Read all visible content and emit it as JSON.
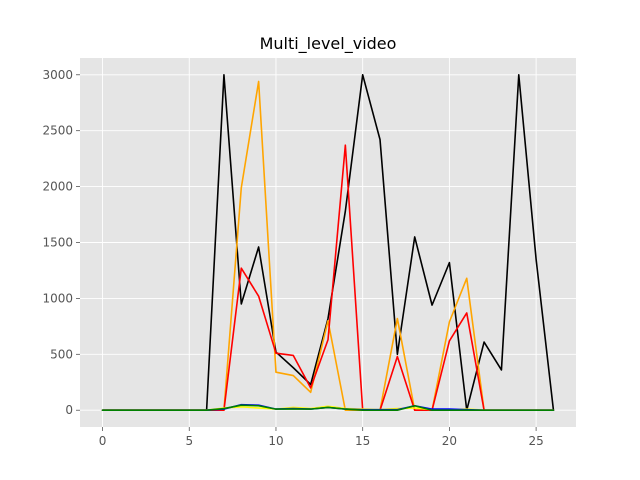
{
  "chart_data": {
    "type": "line",
    "title": "Multi_level_video",
    "xlabel": "",
    "ylabel": "",
    "xlim": [
      -1.3,
      27.3
    ],
    "ylim": [
      -150,
      3150
    ],
    "xticks": [
      0,
      5,
      10,
      15,
      20,
      25
    ],
    "yticks": [
      0,
      500,
      1000,
      1500,
      2000,
      2500,
      3000
    ],
    "grid": true,
    "x": [
      0,
      1,
      2,
      3,
      4,
      5,
      6,
      7,
      8,
      9,
      10,
      11,
      12,
      13,
      14,
      15,
      16,
      17,
      18,
      19,
      20,
      21,
      22,
      23,
      24,
      25,
      26
    ],
    "series": [
      {
        "color": "#000000",
        "values": [
          0,
          0,
          0,
          0,
          0,
          0,
          0,
          3000,
          950,
          1460,
          520,
          380,
          230,
          820,
          1780,
          3000,
          2420,
          500,
          1550,
          940,
          1320,
          0,
          610,
          360,
          3000,
          1350,
          0
        ]
      },
      {
        "color": "#ffa500",
        "values": [
          0,
          0,
          0,
          0,
          0,
          0,
          0,
          0,
          1990,
          2940,
          340,
          310,
          160,
          800,
          0,
          0,
          0,
          820,
          0,
          0,
          790,
          1180,
          0,
          0,
          0,
          0,
          0
        ]
      },
      {
        "color": "#ff0000",
        "values": [
          0,
          0,
          0,
          0,
          0,
          0,
          0,
          0,
          1270,
          1020,
          510,
          490,
          200,
          630,
          2370,
          0,
          0,
          480,
          0,
          0,
          620,
          870,
          0,
          0,
          0,
          0,
          0
        ]
      },
      {
        "color": "#ffff00",
        "values": [
          0,
          0,
          0,
          0,
          0,
          0,
          0,
          20,
          30,
          20,
          10,
          25,
          15,
          35,
          15,
          10,
          5,
          15,
          20,
          5,
          5,
          10,
          0,
          0,
          0,
          0,
          0
        ]
      },
      {
        "color": "#0000ff",
        "values": [
          0,
          0,
          0,
          0,
          0,
          0,
          0,
          10,
          50,
          45,
          10,
          15,
          10,
          25,
          10,
          5,
          5,
          5,
          40,
          10,
          10,
          5,
          0,
          0,
          0,
          0,
          0
        ]
      },
      {
        "color": "#008000",
        "values": [
          0,
          0,
          0,
          0,
          0,
          0,
          0,
          15,
          45,
          40,
          10,
          10,
          10,
          25,
          10,
          0,
          0,
          0,
          40,
          0,
          0,
          0,
          0,
          0,
          0,
          0,
          0
        ]
      }
    ]
  }
}
